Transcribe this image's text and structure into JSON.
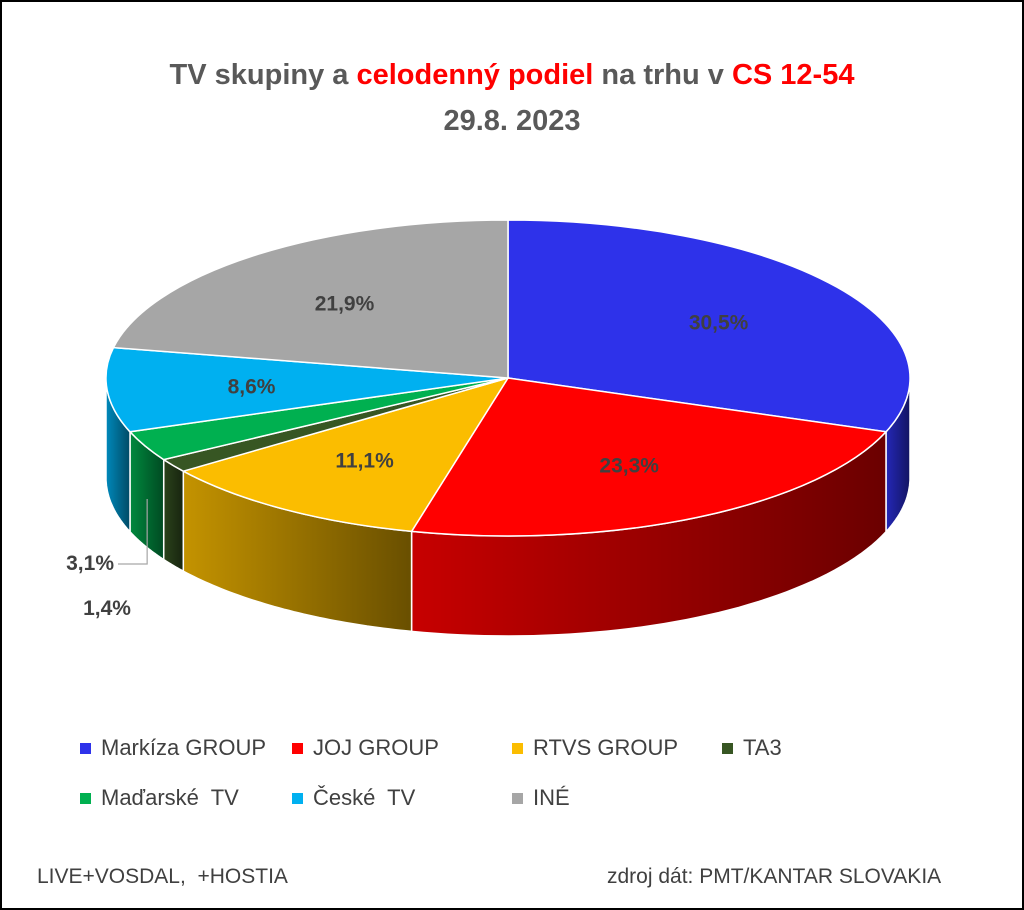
{
  "title": {
    "part1": "TV skupiny a ",
    "part2": "celodenný podiel",
    "part3": " na trhu v ",
    "part4": "CS 12-54",
    "line2": "29.8. 2023"
  },
  "colors": {
    "title": "#595959",
    "highlight": "#ff0000"
  },
  "chart_data": {
    "type": "pie",
    "variant": "3d",
    "categories": [
      "Markíza GROUP",
      "JOJ GROUP",
      "RTVS GROUP",
      "TA3",
      "Maďarské  TV",
      "České  TV",
      "INÉ"
    ],
    "values": [
      30.5,
      23.3,
      11.1,
      1.4,
      3.1,
      8.6,
      21.9
    ],
    "labels": [
      "30,5%",
      "23,3%",
      "11,1%",
      "1,4%",
      "3,1%",
      "8,6%",
      "21,9%"
    ],
    "colors": [
      "#2e32ea",
      "#ff0000",
      "#fbbd00",
      "#375623",
      "#00b050",
      "#00b0f0",
      "#a6a6a6"
    ],
    "legend_position": "bottom"
  },
  "footer": {
    "left": "LIVE+VOSDAL,  +HOSTIA",
    "right": "zdroj dát: PMT/KANTAR SLOVAKIA"
  }
}
